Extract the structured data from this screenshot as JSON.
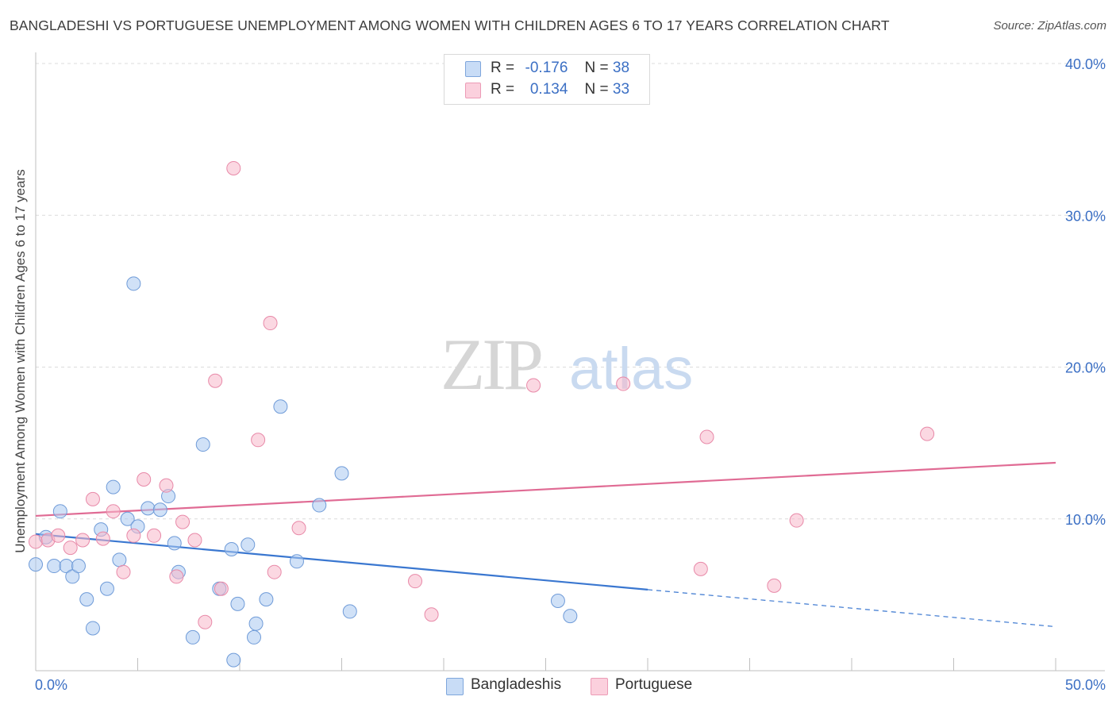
{
  "title": "BANGLADESHI VS PORTUGUESE UNEMPLOYMENT AMONG WOMEN WITH CHILDREN AGES 6 TO 17 YEARS CORRELATION CHART",
  "source": "Source: ZipAtlas.com",
  "watermark": {
    "zip": "ZIP",
    "atlas": "atlas"
  },
  "legend": {
    "rows": [
      {
        "r_label": "R =",
        "r_value": "-0.176",
        "n_label": "N =",
        "n_value": "38",
        "color": "#aac8f0"
      },
      {
        "r_label": "R =",
        "r_value": "0.134",
        "n_label": "N =",
        "n_value": "33",
        "color": "#f8b8cb"
      }
    ]
  },
  "bottom_legend": {
    "items": [
      {
        "label": "Bangladeshis",
        "color": "#aac8f0"
      },
      {
        "label": "Portuguese",
        "color": "#f8b8cb"
      }
    ]
  },
  "chart_data": {
    "type": "scatter",
    "title": "BANGLADESHI VS PORTUGUESE UNEMPLOYMENT AMONG WOMEN WITH CHILDREN AGES 6 TO 17 YEARS CORRELATION CHART",
    "xlabel": "",
    "ylabel": "Unemployment Among Women with Children Ages 6 to 17 years",
    "xlim": [
      0,
      50
    ],
    "ylim": [
      0,
      40
    ],
    "x_tick_labels": [
      "0.0%",
      "50.0%"
    ],
    "y_tick_labels": [
      "10.0%",
      "20.0%",
      "30.0%",
      "40.0%"
    ],
    "y_ticks": [
      10,
      20,
      30,
      40
    ],
    "grid": true,
    "legend_position": "top-center",
    "series": [
      {
        "name": "Bangladeshis",
        "color": "#aac8f0",
        "stroke": "#6f9bd8",
        "points": [
          [
            0.0,
            7.0
          ],
          [
            0.5,
            8.8
          ],
          [
            0.9,
            6.9
          ],
          [
            1.2,
            10.5
          ],
          [
            1.5,
            6.9
          ],
          [
            1.8,
            6.2
          ],
          [
            2.1,
            6.9
          ],
          [
            2.5,
            4.7
          ],
          [
            2.8,
            2.8
          ],
          [
            3.2,
            9.3
          ],
          [
            3.5,
            5.4
          ],
          [
            3.8,
            12.1
          ],
          [
            4.1,
            7.3
          ],
          [
            4.5,
            10.0
          ],
          [
            4.8,
            25.5
          ],
          [
            5.0,
            9.5
          ],
          [
            5.5,
            10.7
          ],
          [
            6.1,
            10.6
          ],
          [
            6.5,
            11.5
          ],
          [
            6.8,
            8.4
          ],
          [
            7.0,
            6.5
          ],
          [
            7.7,
            2.2
          ],
          [
            8.2,
            14.9
          ],
          [
            9.0,
            5.4
          ],
          [
            9.6,
            8.0
          ],
          [
            9.7,
            0.7
          ],
          [
            9.9,
            4.4
          ],
          [
            10.4,
            8.3
          ],
          [
            10.7,
            2.2
          ],
          [
            10.8,
            3.1
          ],
          [
            11.3,
            4.7
          ],
          [
            12.0,
            17.4
          ],
          [
            12.8,
            7.2
          ],
          [
            13.9,
            10.9
          ],
          [
            15.0,
            13.0
          ],
          [
            15.4,
            3.9
          ],
          [
            25.6,
            4.6
          ],
          [
            26.2,
            3.6
          ]
        ]
      },
      {
        "name": "Portuguese",
        "color": "#f8b8cb",
        "stroke": "#e889a8",
        "points": [
          [
            0.0,
            8.5
          ],
          [
            0.6,
            8.6
          ],
          [
            1.1,
            8.9
          ],
          [
            1.7,
            8.1
          ],
          [
            2.3,
            8.6
          ],
          [
            2.8,
            11.3
          ],
          [
            3.3,
            8.7
          ],
          [
            3.8,
            10.5
          ],
          [
            4.3,
            6.5
          ],
          [
            4.8,
            8.9
          ],
          [
            5.3,
            12.6
          ],
          [
            5.8,
            8.9
          ],
          [
            6.4,
            12.2
          ],
          [
            6.9,
            6.2
          ],
          [
            7.2,
            9.8
          ],
          [
            7.8,
            8.6
          ],
          [
            8.3,
            3.2
          ],
          [
            8.8,
            19.1
          ],
          [
            9.1,
            5.4
          ],
          [
            9.7,
            33.1
          ],
          [
            10.9,
            15.2
          ],
          [
            11.5,
            22.9
          ],
          [
            11.7,
            6.5
          ],
          [
            12.9,
            9.4
          ],
          [
            18.6,
            5.9
          ],
          [
            19.4,
            3.7
          ],
          [
            24.4,
            18.8
          ],
          [
            28.8,
            18.9
          ],
          [
            32.6,
            6.7
          ],
          [
            32.9,
            15.4
          ],
          [
            36.2,
            5.6
          ],
          [
            37.3,
            9.9
          ],
          [
            43.7,
            15.6
          ]
        ]
      }
    ],
    "trendlines": [
      {
        "series": "Bangladeshis",
        "x_start": 0.0,
        "y_start": 9.0,
        "x_solid_end": 30.0,
        "x_end": 50.0,
        "y_end": 2.9,
        "color": "#3a77d0"
      },
      {
        "series": "Portuguese",
        "x_start": 0.0,
        "y_start": 10.2,
        "x_end": 50.0,
        "y_end": 13.7,
        "color": "#e06b94"
      }
    ]
  }
}
